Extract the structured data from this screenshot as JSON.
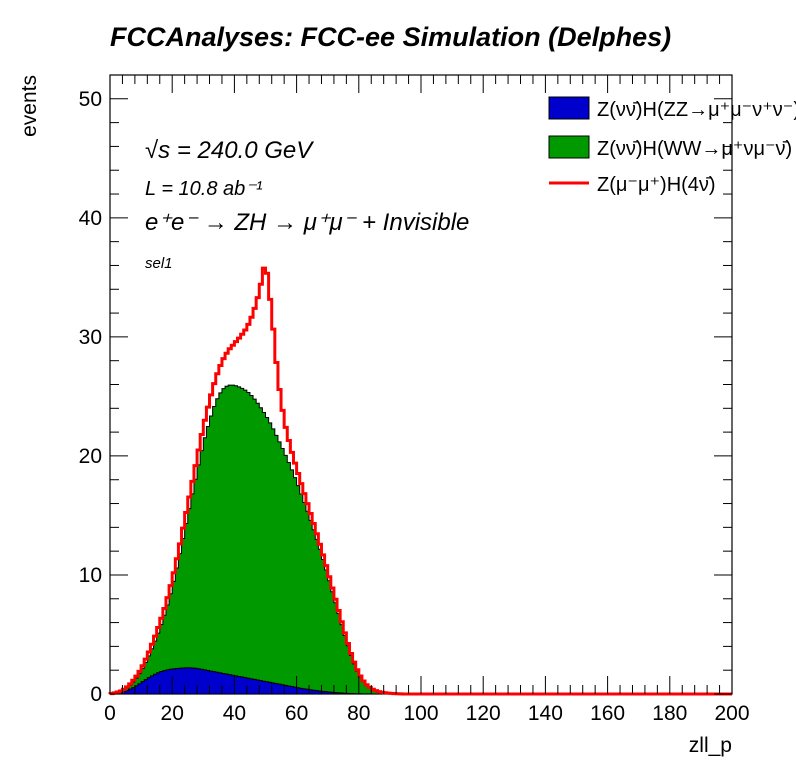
{
  "title": "FCCAnalyses: FCC-ee Simulation (Delphes)",
  "annotations": {
    "sqrt_s": "√s = 240.0 GeV",
    "lumi": "L = 10.8 ab⁻¹",
    "process": "e⁺e⁻ → ZH → μ⁺μ⁻ + Invisible",
    "selection": "sel1"
  },
  "chart_data": {
    "type": "area",
    "xlabel": "zll_p",
    "ylabel": "events",
    "xlim": [
      0,
      200
    ],
    "ylim": [
      0,
      52
    ],
    "xticks": [
      0,
      20,
      40,
      60,
      80,
      100,
      120,
      140,
      160,
      180,
      200
    ],
    "yticks": [
      0,
      10,
      20,
      30,
      40,
      50
    ],
    "legend_position": "top-right",
    "stacked": true,
    "x": [
      0,
      2,
      4,
      6,
      8,
      10,
      12,
      14,
      16,
      18,
      20,
      22,
      24,
      26,
      28,
      30,
      32,
      34,
      36,
      38,
      40,
      42,
      44,
      46,
      48,
      50,
      52,
      54,
      56,
      58,
      60,
      62,
      64,
      66,
      68,
      70,
      72,
      74,
      76,
      78,
      80,
      82,
      84,
      86,
      88,
      90,
      92,
      94,
      96,
      98,
      100,
      102,
      104,
      106,
      108,
      110,
      120,
      140,
      160,
      180,
      200
    ],
    "series": [
      {
        "name": "Z(νν̄)H(ZZ→μ⁺μ⁻ν⁺ν⁻)",
        "color": "#0000cc",
        "style": "filled",
        "values": [
          0,
          0.05,
          0.15,
          0.35,
          0.6,
          0.95,
          1.3,
          1.6,
          1.85,
          2.0,
          2.1,
          2.15,
          2.2,
          2.2,
          2.15,
          2.05,
          1.95,
          1.85,
          1.75,
          1.65,
          1.55,
          1.45,
          1.35,
          1.25,
          1.15,
          1.05,
          0.95,
          0.85,
          0.75,
          0.65,
          0.55,
          0.45,
          0.38,
          0.3,
          0.24,
          0.18,
          0.13,
          0.09,
          0.06,
          0.04,
          0.02,
          0.01,
          0.005,
          0,
          0,
          0,
          0,
          0,
          0,
          0,
          0,
          0,
          0,
          0,
          0,
          0,
          0,
          0,
          0,
          0,
          0
        ]
      },
      {
        "name": "Z(νν̄)H(WW→μ⁺νμ⁻ν̄)",
        "color": "#009900",
        "style": "filled",
        "values": [
          0,
          0.05,
          0.1,
          0.25,
          0.55,
          0.95,
          1.6,
          2.5,
          3.6,
          5.0,
          6.8,
          9.0,
          11.5,
          14.0,
          16.5,
          19.0,
          21.0,
          22.7,
          23.8,
          24.3,
          24.4,
          24.3,
          24.1,
          23.7,
          23.1,
          22.4,
          21.6,
          20.6,
          19.6,
          18.5,
          17.3,
          16.0,
          14.6,
          13.1,
          11.5,
          9.8,
          8.0,
          6.2,
          4.4,
          2.8,
          1.6,
          0.8,
          0.4,
          0.2,
          0.1,
          0.05,
          0.02,
          0,
          0,
          0,
          0,
          0,
          0,
          0,
          0,
          0,
          0,
          0,
          0,
          0,
          0
        ]
      },
      {
        "name": "Z(μ⁻μ⁺)H(4ν̄)",
        "color": "#ff0000",
        "style": "line",
        "values": [
          0,
          0.02,
          0.05,
          0.1,
          0.15,
          0.2,
          0.3,
          0.4,
          0.5,
          0.6,
          0.7,
          0.8,
          0.9,
          1.0,
          1.2,
          1.4,
          1.7,
          2.0,
          2.4,
          2.9,
          3.5,
          4.3,
          5.3,
          7.0,
          9.5,
          13.0,
          9.5,
          5.0,
          2.6,
          1.6,
          1.1,
          0.8,
          0.6,
          0.5,
          0.4,
          0.35,
          0.3,
          0.25,
          0.2,
          0.15,
          0.1,
          0.07,
          0.05,
          0.03,
          0.02,
          0.01,
          0.005,
          0,
          0,
          0,
          0,
          0,
          0,
          0,
          0,
          0,
          0,
          0,
          0,
          0,
          0
        ]
      }
    ]
  }
}
